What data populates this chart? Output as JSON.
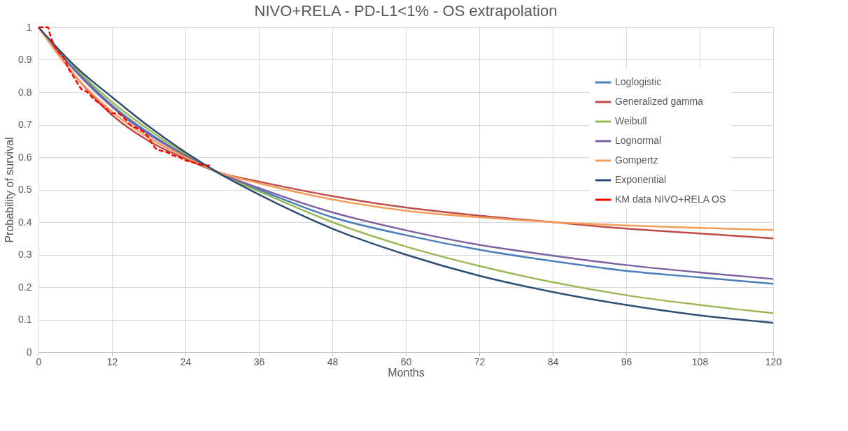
{
  "chart_data": {
    "type": "line",
    "title": "NIVO+RELA - PD-L1<1% - OS extrapolation",
    "xlabel": "Months",
    "ylabel": "Probability of survival",
    "x": [
      0,
      6,
      12,
      18,
      24,
      30,
      36,
      48,
      60,
      72,
      84,
      96,
      108,
      120
    ],
    "xlim": [
      0,
      120
    ],
    "xticks": [
      0,
      12,
      24,
      36,
      48,
      60,
      72,
      84,
      96,
      108,
      120
    ],
    "ylim": [
      0,
      1
    ],
    "yticks": [
      0,
      0.1,
      0.2,
      0.3,
      0.4,
      0.5,
      0.6,
      0.7,
      0.8,
      0.9,
      1
    ],
    "grid": true,
    "legend": "top right",
    "marker": "none",
    "series": [
      {
        "name": "Loglogistic",
        "color": "#4a7ebb",
        "values": [
          1,
          0.87,
          0.76,
          0.675,
          0.605,
          0.545,
          0.5,
          0.415,
          0.36,
          0.315,
          0.28,
          0.25,
          0.23,
          0.21
        ]
      },
      {
        "name": "Generalized gamma",
        "color": "#be4b48",
        "values": [
          1,
          0.85,
          0.73,
          0.65,
          0.595,
          0.55,
          0.525,
          0.48,
          0.445,
          0.42,
          0.4,
          0.38,
          0.365,
          0.35
        ]
      },
      {
        "name": "Weibull",
        "color": "#98b954",
        "values": [
          1,
          0.875,
          0.77,
          0.685,
          0.61,
          0.545,
          0.495,
          0.4,
          0.325,
          0.265,
          0.215,
          0.175,
          0.145,
          0.12
        ]
      },
      {
        "name": "Lognormal",
        "color": "#7d60a0",
        "values": [
          1,
          0.865,
          0.755,
          0.67,
          0.605,
          0.548,
          0.505,
          0.43,
          0.375,
          0.33,
          0.297,
          0.268,
          0.245,
          0.225
        ]
      },
      {
        "name": "Gompertz",
        "color": "#f59d56",
        "values": [
          1,
          0.85,
          0.74,
          0.66,
          0.6,
          0.55,
          0.52,
          0.47,
          0.435,
          0.415,
          0.4,
          0.39,
          0.382,
          0.376
        ]
      },
      {
        "name": "Exponential",
        "color": "#2c4d75",
        "values": [
          1,
          0.88,
          0.785,
          0.695,
          0.615,
          0.545,
          0.485,
          0.38,
          0.3,
          0.235,
          0.185,
          0.145,
          0.113,
          0.09
        ]
      },
      {
        "name": "KM data NIVO+RELA OS",
        "color": "#ff0000",
        "line_style": "dashed",
        "x": [
          0,
          1.5,
          2,
          3,
          4,
          5,
          6,
          7,
          8,
          9,
          10,
          11,
          12,
          13,
          14,
          15,
          16,
          17,
          18,
          19,
          20,
          21,
          22,
          23,
          24,
          25,
          26,
          27,
          28
        ],
        "values": [
          1,
          1,
          0.97,
          0.93,
          0.91,
          0.87,
          0.84,
          0.81,
          0.8,
          0.78,
          0.765,
          0.75,
          0.735,
          0.735,
          0.72,
          0.7,
          0.69,
          0.68,
          0.66,
          0.63,
          0.62,
          0.615,
          0.605,
          0.6,
          0.59,
          0.585,
          0.58,
          0.575,
          0.575
        ]
      }
    ]
  }
}
